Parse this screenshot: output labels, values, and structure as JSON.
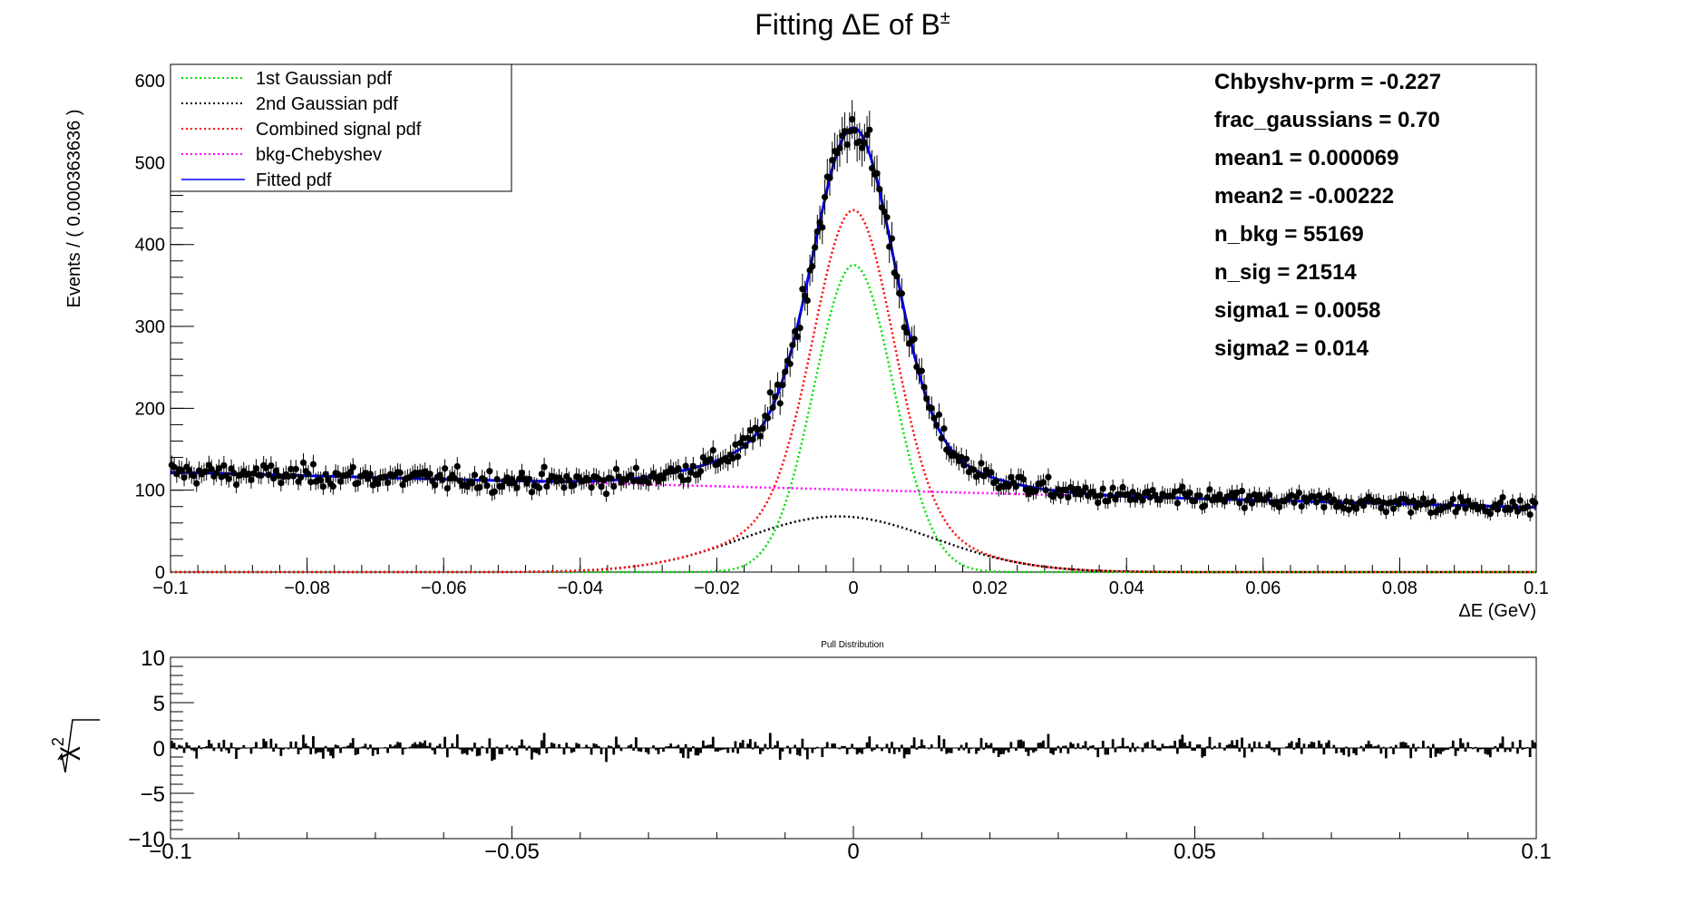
{
  "title": "Fitting ΔE of B",
  "title_sup": "±",
  "colors": {
    "gauss1": "#00e000",
    "gauss2": "#000000",
    "combined": "#ff0000",
    "bkg": "#ff00ff",
    "fitted": "#0000ff",
    "points": "#000000"
  },
  "legend": [
    {
      "label": "1st Gaussian pdf",
      "key": "gauss1",
      "style": "dotted"
    },
    {
      "label": "2nd Gaussian pdf",
      "key": "gauss2",
      "style": "dotted"
    },
    {
      "label": "Combined signal pdf",
      "key": "combined",
      "style": "dotted"
    },
    {
      "label": "bkg-Chebyshev",
      "key": "bkg",
      "style": "dotted"
    },
    {
      "label": "Fitted pdf",
      "key": "fitted",
      "style": "solid"
    }
  ],
  "params": [
    "Chbyshv-prm = -0.227",
    "frac_gaussians =  0.70",
    "mean1 =  0.000069",
    "mean2 = -0.00222",
    "n_bkg =  55169",
    "n_sig =  21514",
    "sigma1 =  0.0058",
    "sigma2 =  0.014"
  ],
  "chart_data": [
    {
      "type": "scatter",
      "title": "Fitting ΔE of B±",
      "xlabel": "ΔE (GeV)",
      "ylabel": "Events / ( 0.000363636 )",
      "xlim": [
        -0.1,
        0.1
      ],
      "ylim": [
        0,
        620
      ],
      "x_ticks": [
        "−0.1",
        "−0.08",
        "−0.06",
        "−0.04",
        "−0.02",
        "0",
        "0.02",
        "0.04",
        "0.06",
        "0.08",
        "0.1"
      ],
      "x_tick_values": [
        -0.1,
        -0.08,
        -0.06,
        -0.04,
        -0.02,
        0,
        0.02,
        0.04,
        0.06,
        0.08,
        0.1
      ],
      "y_ticks": [
        "0",
        "100",
        "200",
        "300",
        "400",
        "500",
        "600"
      ],
      "y_tick_values": [
        0,
        100,
        200,
        300,
        400,
        500,
        600
      ],
      "n_bins": 550,
      "bin_width": 0.000363636,
      "model": {
        "bkg_start": 122,
        "bkg_end": 79,
        "gauss1_mean": 6.9e-05,
        "gauss1_sigma": 0.0058,
        "gauss1_peak": 375,
        "gauss2_mean": -0.00222,
        "gauss2_sigma": 0.014,
        "gauss2_peak": 68
      },
      "series": [
        {
          "name": "1st Gaussian pdf",
          "color_key": "gauss1"
        },
        {
          "name": "2nd Gaussian pdf",
          "color_key": "gauss2"
        },
        {
          "name": "Combined signal pdf",
          "color_key": "combined"
        },
        {
          "name": "bkg-Chebyshev",
          "color_key": "bkg"
        },
        {
          "name": "Fitted pdf",
          "color_key": "fitted"
        },
        {
          "name": "data",
          "color_key": "points",
          "peak_value": 560
        }
      ]
    },
    {
      "type": "bar",
      "title": "Pull Distribution",
      "xlabel": "",
      "ylabel": "√χ²",
      "ylabel_symbol": "χ",
      "ylabel_exp": "2",
      "xlim": [
        -0.1,
        0.1
      ],
      "ylim": [
        -10,
        10
      ],
      "x_ticks": [
        "−0.1",
        "−0.05",
        "0",
        "0.05",
        "0.1"
      ],
      "x_tick_values": [
        -0.1,
        -0.05,
        0,
        0.05,
        0.1
      ],
      "y_ticks": [
        "10",
        "5",
        "0",
        "−5",
        "−10"
      ],
      "y_tick_values": [
        10,
        5,
        0,
        -5,
        -10
      ],
      "value_range": [
        -3.5,
        3
      ]
    }
  ]
}
